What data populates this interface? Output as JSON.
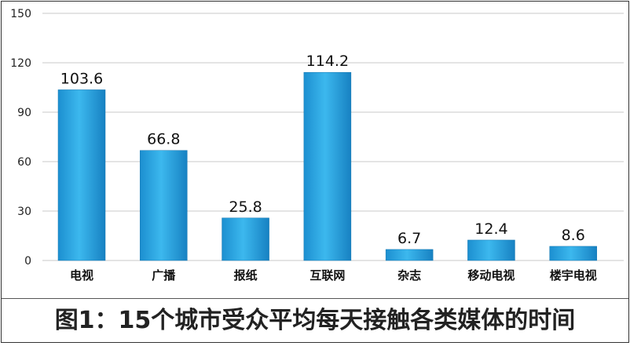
{
  "chart_data": {
    "type": "bar",
    "categories": [
      "电视",
      "广播",
      "报纸",
      "互联网",
      "杂志",
      "移动电视",
      "楼宇电视"
    ],
    "values": [
      103.6,
      66.8,
      25.8,
      114.2,
      6.7,
      12.4,
      8.6
    ],
    "value_labels": [
      "103.6",
      "66.8",
      "25.8",
      "114.2",
      "6.7",
      "12.4",
      "8.6"
    ],
    "yticks": [
      "0",
      "30",
      "60",
      "90",
      "120",
      "150"
    ],
    "ylim": [
      0,
      150
    ],
    "grid": true,
    "bar_color": "#2ba3e0",
    "caption": "图1：15个城市受众平均每天接触各类媒体的时间"
  }
}
